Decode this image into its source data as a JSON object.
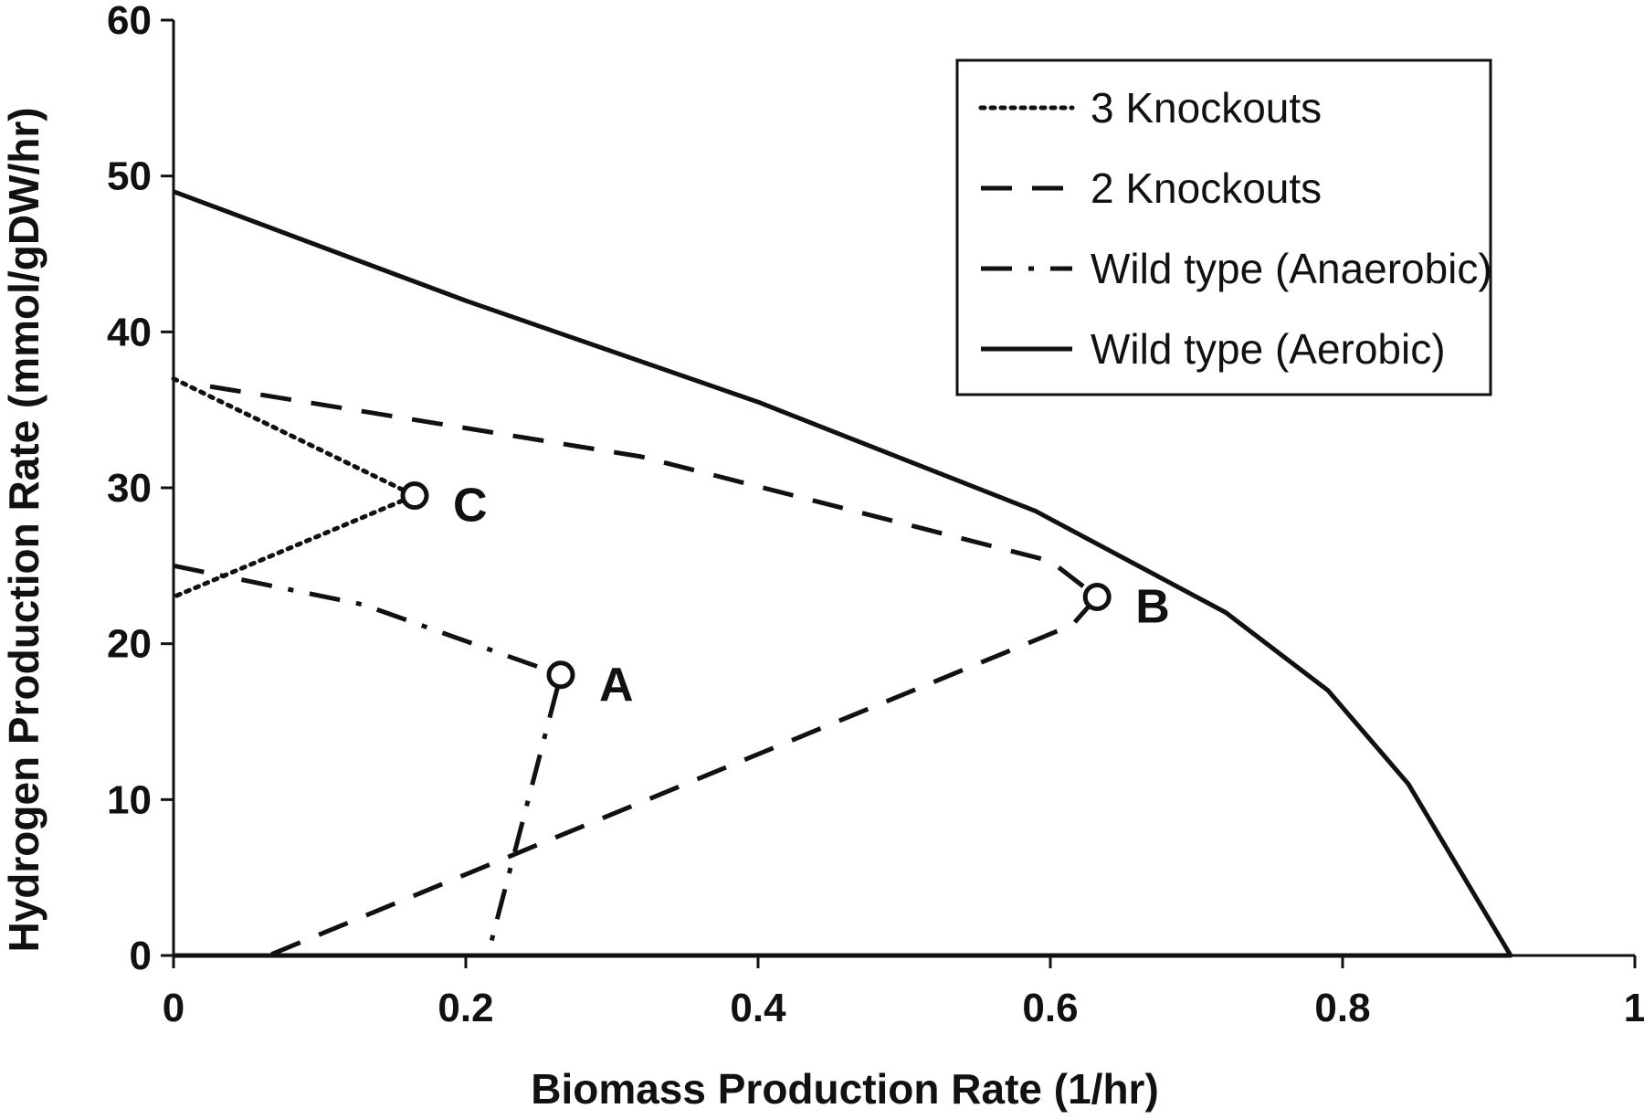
{
  "chart_data": {
    "type": "line",
    "xlabel": "Biomass Production Rate (1/hr)",
    "ylabel": "Hydrogen Production Rate (mmol/gDW/hr)",
    "xlim": [
      0,
      1
    ],
    "ylim": [
      0,
      60
    ],
    "x_ticks": [
      0,
      0.2,
      0.4,
      0.6,
      0.8,
      1
    ],
    "x_tick_labels": [
      "0",
      "0.2",
      "0.4",
      "0.6",
      "0.8",
      "1"
    ],
    "y_ticks": [
      0,
      10,
      20,
      30,
      40,
      50,
      60
    ],
    "y_tick_labels": [
      "0",
      "10",
      "20",
      "30",
      "40",
      "50",
      "60"
    ],
    "grid": false,
    "legend_position": "top-right",
    "colors": {
      "ink": "#111111",
      "background": "#ffffff"
    },
    "series": [
      {
        "name": "3 Knockouts",
        "style": "dotted",
        "x": [
          0,
          0.165,
          0
        ],
        "y": [
          37,
          29.5,
          23
        ]
      },
      {
        "name": "2 Knockouts",
        "style": "dashed",
        "x": [
          0.025,
          0.32,
          0.6,
          0.632,
          0.615,
          0.065
        ],
        "y": [
          36.5,
          32,
          25.3,
          23,
          21.2,
          0
        ]
      },
      {
        "name": "Wild type (Anaerobic)",
        "style": "dash-dot",
        "x": [
          0,
          0.13,
          0.265,
          0.215
        ],
        "y": [
          25,
          22.5,
          18,
          0
        ]
      },
      {
        "name": "Wild type (Aerobic)",
        "style": "solid",
        "x": [
          0,
          0.2,
          0.4,
          0.59,
          0.72,
          0.79,
          0.845,
          0.915,
          0
        ],
        "y": [
          49,
          42,
          35.5,
          28.5,
          22,
          17,
          11,
          0,
          0
        ]
      }
    ],
    "annotations": [
      {
        "label": "A",
        "x": 0.265,
        "y": 18
      },
      {
        "label": "B",
        "x": 0.632,
        "y": 23
      },
      {
        "label": "C",
        "x": 0.165,
        "y": 29.5
      }
    ]
  }
}
